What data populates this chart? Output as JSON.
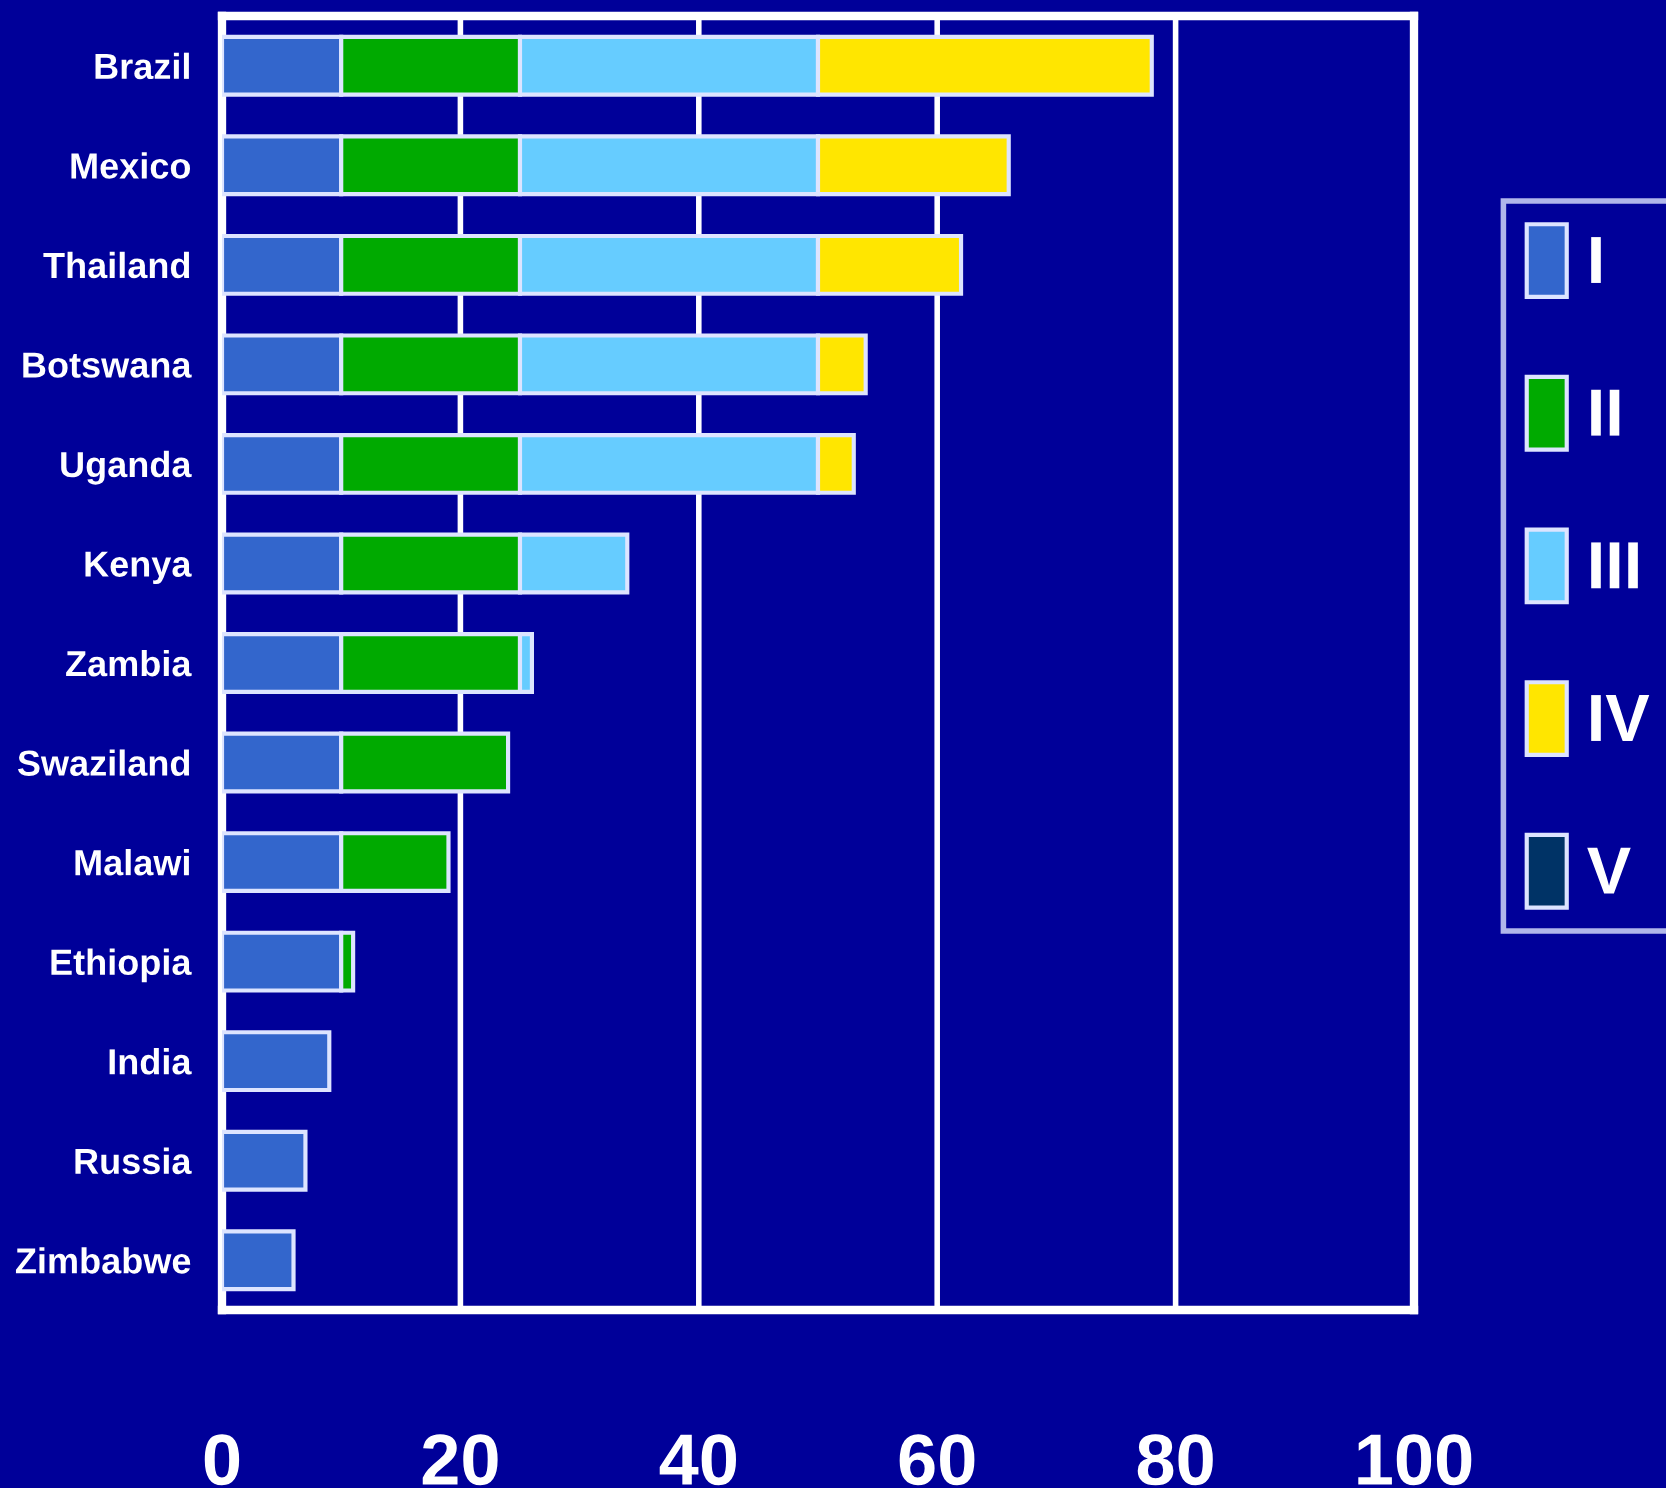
{
  "chart_data": {
    "type": "bar",
    "orientation": "horizontal",
    "stacked": true,
    "categories": [
      "Brazil",
      "Mexico",
      "Thailand",
      "Botswana",
      "Uganda",
      "Kenya",
      "Zambia",
      "Swaziland",
      "Malawi",
      "Ethiopia",
      "India",
      "Russia",
      "Zimbabwe"
    ],
    "series": [
      {
        "name": "I",
        "color": "#3366cc",
        "values": [
          10,
          10,
          10,
          10,
          10,
          10,
          10,
          10,
          10,
          10,
          9,
          7,
          6
        ]
      },
      {
        "name": "II",
        "color": "#00aa00",
        "values": [
          15,
          15,
          15,
          15,
          15,
          15,
          15,
          14,
          9,
          1,
          null,
          null,
          null
        ]
      },
      {
        "name": "III",
        "color": "#66ccff",
        "values": [
          25,
          25,
          25,
          25,
          25,
          9,
          1,
          null,
          null,
          null,
          null,
          null,
          null
        ]
      },
      {
        "name": "IV",
        "color": "#ffe600",
        "values": [
          28,
          16,
          12,
          4,
          3,
          null,
          null,
          null,
          null,
          null,
          null,
          null,
          null
        ]
      },
      {
        "name": "V",
        "color": "#003366",
        "values": [
          null,
          null,
          null,
          null,
          null,
          null,
          null,
          null,
          null,
          null,
          null,
          null,
          null
        ]
      }
    ],
    "xlim": [
      0,
      100
    ],
    "xticks": [
      0,
      20,
      40,
      60,
      80,
      100
    ],
    "grid": "x",
    "legend": "right"
  }
}
